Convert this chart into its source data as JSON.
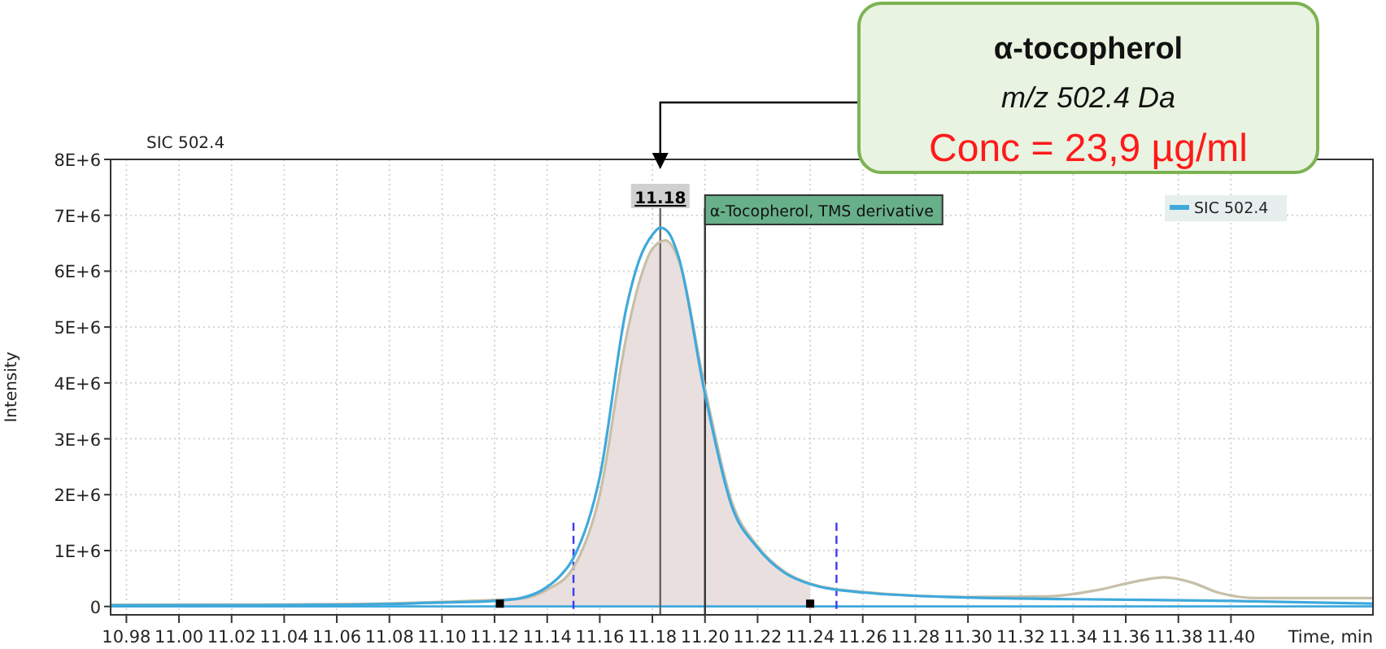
{
  "chart_data": {
    "type": "line",
    "title": "SIC 502.4",
    "xlabel": "Time, min",
    "ylabel": "Intensity",
    "xlim": [
      10.974,
      11.454
    ],
    "ylim": [
      -150000,
      8000000
    ],
    "xticks": [
      10.98,
      {
        "value": 11.0,
        "label": "11.00"
      },
      11.02,
      11.04,
      11.06,
      11.08,
      {
        "value": 11.1,
        "label": "11.10"
      },
      11.12,
      11.14,
      11.16,
      11.18,
      {
        "value": 11.2,
        "label": "11.20"
      },
      11.22,
      11.24,
      11.26,
      11.28,
      {
        "value": 11.3,
        "label": "11.30"
      },
      11.32,
      11.34,
      11.36,
      11.38,
      {
        "value": 11.4,
        "label": "11.40"
      }
    ],
    "yticks": [
      0,
      {
        "value": 1000000,
        "label": "1E+6"
      },
      {
        "value": 2000000,
        "label": "2E+6"
      },
      {
        "value": 3000000,
        "label": "3E+6"
      },
      {
        "value": 4000000,
        "label": "4E+6"
      },
      {
        "value": 5000000,
        "label": "5E+6"
      },
      {
        "value": 6000000,
        "label": "6E+6"
      },
      {
        "value": 7000000,
        "label": "7E+6"
      },
      {
        "value": 8000000,
        "label": "8E+6"
      }
    ],
    "grid": true,
    "legend": "top right",
    "series": [
      {
        "type": "area",
        "color": "#e9dfdf",
        "x": [
          11.122,
          11.13,
          11.14,
          11.15,
          11.16,
          11.17,
          11.175,
          11.18,
          11.185,
          11.19,
          11.2,
          11.21,
          11.22,
          11.23,
          11.24
        ],
        "values": [
          120000,
          140000,
          300000,
          700000,
          2000000,
          4800000,
          5800000,
          6400000,
          6550000,
          6200000,
          3900000,
          1900000,
          1080000,
          630000,
          410000
        ]
      },
      {
        "type": "line",
        "color": "#c8bfa8",
        "x": [
          10.974,
          11.06,
          11.1,
          11.122,
          11.13,
          11.14,
          11.15,
          11.16,
          11.17,
          11.175,
          11.18,
          11.185,
          11.19,
          11.2,
          11.21,
          11.22,
          11.23,
          11.24,
          11.26,
          11.3,
          11.33,
          11.35,
          11.365,
          11.375,
          11.385,
          11.395,
          11.41,
          11.454
        ],
        "values": [
          30000,
          40000,
          80000,
          120000,
          140000,
          300000,
          700000,
          2000000,
          4800000,
          5800000,
          6400000,
          6550000,
          6200000,
          3900000,
          1900000,
          1080000,
          630000,
          410000,
          260000,
          170000,
          180000,
          300000,
          460000,
          520000,
          430000,
          250000,
          150000,
          150000
        ]
      },
      {
        "name": "SIC 502.4",
        "color": "#3fa9dc",
        "x": [
          10.974,
          11.06,
          11.1,
          11.12,
          11.13,
          11.14,
          11.145,
          11.15,
          11.16,
          11.17,
          11.175,
          11.18,
          11.183,
          11.186,
          11.19,
          11.2,
          11.21,
          11.22,
          11.23,
          11.24,
          11.26,
          11.3,
          11.34,
          11.4,
          11.454
        ],
        "values": [
          20000,
          30000,
          70000,
          100000,
          150000,
          350000,
          550000,
          870000,
          2320000,
          5320000,
          6200000,
          6650000,
          6780000,
          6700000,
          6250000,
          3800000,
          1820000,
          1050000,
          610000,
          400000,
          250000,
          160000,
          130000,
          100000,
          50000
        ]
      },
      {
        "type": "scatter",
        "marker": "square",
        "color": "#000000",
        "x": [
          11.122,
          11.24
        ],
        "values": [
          50000,
          50000
        ]
      }
    ],
    "ref_lines": [
      {
        "axis": "y",
        "value": 0,
        "color": "#3fa9dc"
      },
      {
        "axis": "x",
        "value": 11.15,
        "color": "#3a3af0",
        "line_style": "dashed"
      },
      {
        "axis": "x",
        "value": 11.25,
        "color": "#3a3af0",
        "line_style": "dashed"
      },
      {
        "axis": "x",
        "value": 11.183,
        "label": "11.18",
        "color": "#666666"
      },
      {
        "axis": "x",
        "value": 11.2,
        "label": "α-Tocopherol, TMS derivative",
        "color": "#333333"
      }
    ],
    "annotations": [
      "α-tocopherol",
      "m/z 502.4 Da",
      "Conc = 23,9 µg/ml"
    ]
  }
}
